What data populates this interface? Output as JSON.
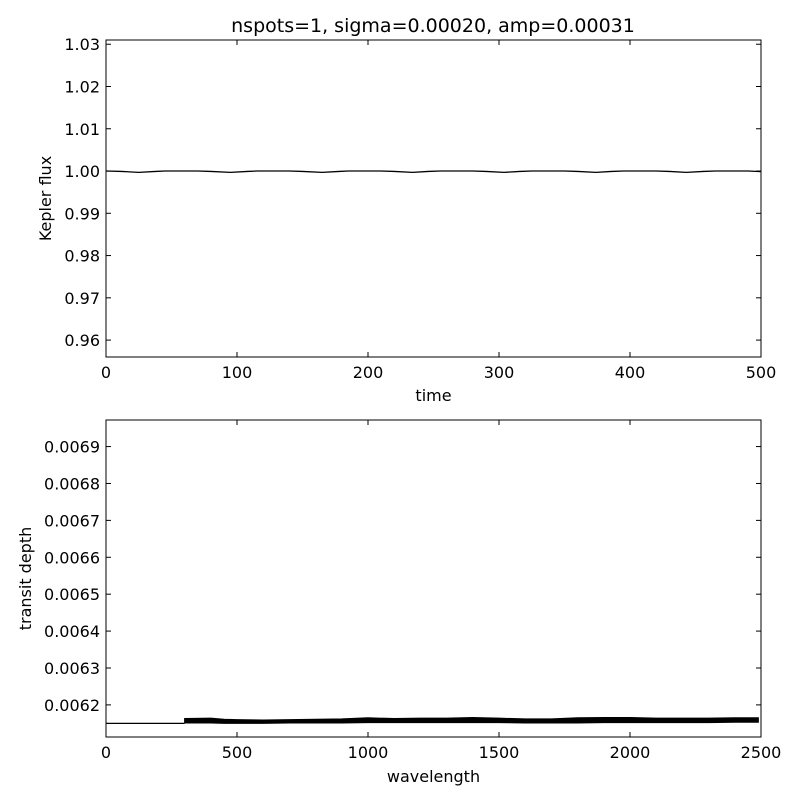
{
  "figure_title": "nspots=1, sigma=0.00020, amp=0.00031",
  "chart_data": [
    {
      "type": "line",
      "title": "nspots=1, sigma=0.00020, amp=0.00031",
      "xlabel": "time",
      "ylabel": "Kepler flux",
      "xlim": [
        0,
        500
      ],
      "ylim": [
        0.956,
        1.031
      ],
      "xticks": [
        "0",
        "100",
        "200",
        "300",
        "400",
        "500"
      ],
      "xtick_values": [
        0,
        100,
        200,
        300,
        400,
        500
      ],
      "yticks": [
        "0.96",
        "0.97",
        "0.98",
        "0.99",
        "1.00",
        "1.01",
        "1.02",
        "1.03"
      ],
      "ytick_values": [
        0.96,
        0.97,
        0.98,
        0.99,
        1.0,
        1.01,
        1.02,
        1.03
      ],
      "grid": false,
      "color": "#000000",
      "series": [
        {
          "x": [
            0,
            12,
            25,
            38,
            45,
            60,
            70,
            80,
            95,
            108,
            115,
            130,
            140,
            150,
            165,
            178,
            185,
            200,
            210,
            220,
            234,
            246,
            255,
            270,
            280,
            290,
            304,
            316,
            325,
            340,
            350,
            360,
            374,
            386,
            395,
            410,
            420,
            430,
            443,
            456,
            465,
            480,
            490,
            500
          ],
          "y": [
            1.0,
            0.9999,
            0.99969,
            0.9999,
            1.0,
            1.0,
            1.0,
            0.9999,
            0.99969,
            0.9999,
            1.0,
            1.0,
            1.0,
            0.9999,
            0.99969,
            0.9999,
            1.0,
            1.0,
            1.0,
            0.9999,
            0.99969,
            0.9999,
            1.0,
            1.0,
            1.0,
            0.9999,
            0.99969,
            0.9999,
            1.0,
            1.0,
            1.0,
            0.9999,
            0.99969,
            0.9999,
            1.0,
            1.0,
            1.0,
            0.9999,
            0.99969,
            0.9999,
            1.0,
            1.0,
            1.0,
            0.99985
          ]
        }
      ]
    },
    {
      "type": "line",
      "title": "",
      "xlabel": "wavelength",
      "ylabel": "transit depth",
      "xlim": [
        0,
        2500
      ],
      "ylim": [
        0.006113,
        0.006972
      ],
      "xticks": [
        "0",
        "500",
        "1000",
        "1500",
        "2000",
        "2500"
      ],
      "xtick_values": [
        0,
        500,
        1000,
        1500,
        2000,
        2500
      ],
      "yticks": [
        "0.0062",
        "0.0063",
        "0.0064",
        "0.0065",
        "0.0066",
        "0.0067",
        "0.0068",
        "0.0069"
      ],
      "ytick_values": [
        0.0062,
        0.0063,
        0.0064,
        0.0065,
        0.0066,
        0.0067,
        0.0068,
        0.0069
      ],
      "grid": false,
      "color": "#000000",
      "series": [
        {
          "x": [
            0,
            300
          ],
          "y": [
            0.00615,
            0.00615
          ]
        },
        {
          "x": [
            300,
            400,
            450,
            500,
            600,
            700,
            800,
            900,
            1000,
            1100,
            1200,
            1300,
            1400,
            1500,
            1600,
            1700,
            1800,
            1900,
            2000,
            2100,
            2200,
            2300,
            2400,
            2490
          ],
          "y_low": [
            0.006151,
            0.006151,
            0.00615,
            0.00615,
            0.00615,
            0.006151,
            0.006151,
            0.006151,
            0.006152,
            0.006152,
            0.006152,
            0.006152,
            0.006152,
            0.006152,
            0.006151,
            0.006151,
            0.006151,
            0.006152,
            0.006152,
            0.006152,
            0.006152,
            0.006152,
            0.006153,
            0.006153
          ],
          "y_high": [
            0.006163,
            0.006164,
            0.006161,
            0.00616,
            0.006159,
            0.00616,
            0.006161,
            0.006162,
            0.006165,
            0.006163,
            0.006164,
            0.006164,
            0.006166,
            0.006164,
            0.006162,
            0.006162,
            0.006165,
            0.006166,
            0.006166,
            0.006164,
            0.006164,
            0.006164,
            0.006165,
            0.006165
          ]
        }
      ]
    }
  ]
}
